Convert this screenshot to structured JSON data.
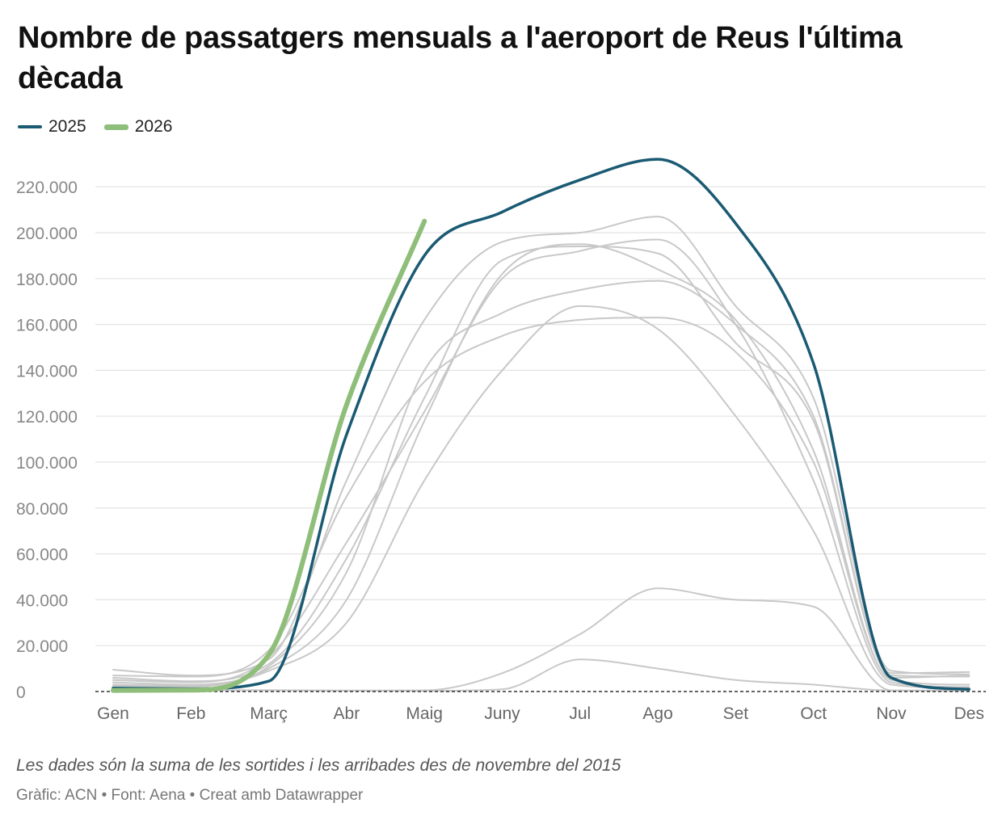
{
  "title": "Nombre de passatgers mensuals a l'aeroport de Reus l'última dècada",
  "legend": [
    {
      "label": "2025",
      "color": "#1a5a73"
    },
    {
      "label": "2026",
      "color": "#8fbe7a"
    }
  ],
  "notes": "Les dades són la suma de les sortides i les arribades des de novembre del 2015",
  "credits": "Gràfic: ACN • Font: Aena • Creat amb Datawrapper",
  "chart_data": {
    "type": "line",
    "title": "Nombre de passatgers mensuals a l'aeroport de Reus l'última dècada",
    "xlabel": "",
    "ylabel": "",
    "categories": [
      "Gen",
      "Feb",
      "Març",
      "Abr",
      "Maig",
      "Juny",
      "Jul",
      "Ago",
      "Set",
      "Oct",
      "Nov",
      "Des"
    ],
    "y_ticks": [
      0,
      20000,
      40000,
      60000,
      80000,
      100000,
      120000,
      140000,
      160000,
      180000,
      200000,
      220000
    ],
    "y_tick_labels": [
      "0",
      "20.000",
      "40.000",
      "60.000",
      "80.000",
      "100.000",
      "120.000",
      "140.000",
      "160.000",
      "180.000",
      "200.000",
      "220.000"
    ],
    "ylim": [
      0,
      232000
    ],
    "grid": true,
    "legend_position": "top-left",
    "highlight_series": [
      {
        "name": "2025",
        "color": "#1a5a73",
        "values": [
          1500,
          1200,
          4500,
          112000,
          190000,
          209000,
          223000,
          232000,
          204000,
          143000,
          6000,
          1000
        ]
      },
      {
        "name": "2026",
        "color": "#8fbe7a",
        "values": [
          500,
          600,
          16000,
          125000,
          205000
        ]
      }
    ],
    "background_series": [
      {
        "color": "#c8c8c8",
        "values": [
          9500,
          7000,
          14000,
          92000,
          162000,
          196000,
          200000,
          207000,
          168000,
          128000,
          9000,
          7500
        ]
      },
      {
        "color": "#c8c8c8",
        "values": [
          6000,
          4500,
          12000,
          58000,
          128000,
          188000,
          194000,
          191000,
          152000,
          118000,
          7000,
          6500
        ]
      },
      {
        "color": "#c8c8c8",
        "values": [
          4000,
          3000,
          10000,
          40000,
          118000,
          182000,
          195000,
          184000,
          162000,
          105000,
          5000,
          3000
        ]
      },
      {
        "color": "#c8c8c8",
        "values": [
          3000,
          2500,
          11000,
          52000,
          140000,
          165000,
          175000,
          179000,
          160000,
          120000,
          8000,
          8500
        ]
      },
      {
        "color": "#c8c8c8",
        "values": [
          7000,
          6500,
          18000,
          85000,
          135000,
          155000,
          162000,
          163000,
          148000,
          100000,
          6000,
          7000
        ]
      },
      {
        "color": "#c8c8c8",
        "values": [
          2500,
          2000,
          9000,
          30000,
          92000,
          140000,
          168000,
          158000,
          120000,
          70000,
          3000,
          1500
        ]
      },
      {
        "color": "#c8c8c8",
        "values": [
          5000,
          4000,
          15000,
          65000,
          122000,
          180000,
          192000,
          197000,
          160000,
          92000,
          4000,
          2000
        ]
      },
      {
        "color": "#c8c8c8",
        "values": [
          1000,
          500,
          600,
          400,
          500,
          8000,
          25000,
          45000,
          40000,
          37000,
          500,
          400
        ]
      },
      {
        "color": "#c8c8c8",
        "values": [
          800,
          600,
          500,
          400,
          300,
          1000,
          14000,
          10000,
          5000,
          3000,
          400,
          300
        ]
      }
    ]
  }
}
